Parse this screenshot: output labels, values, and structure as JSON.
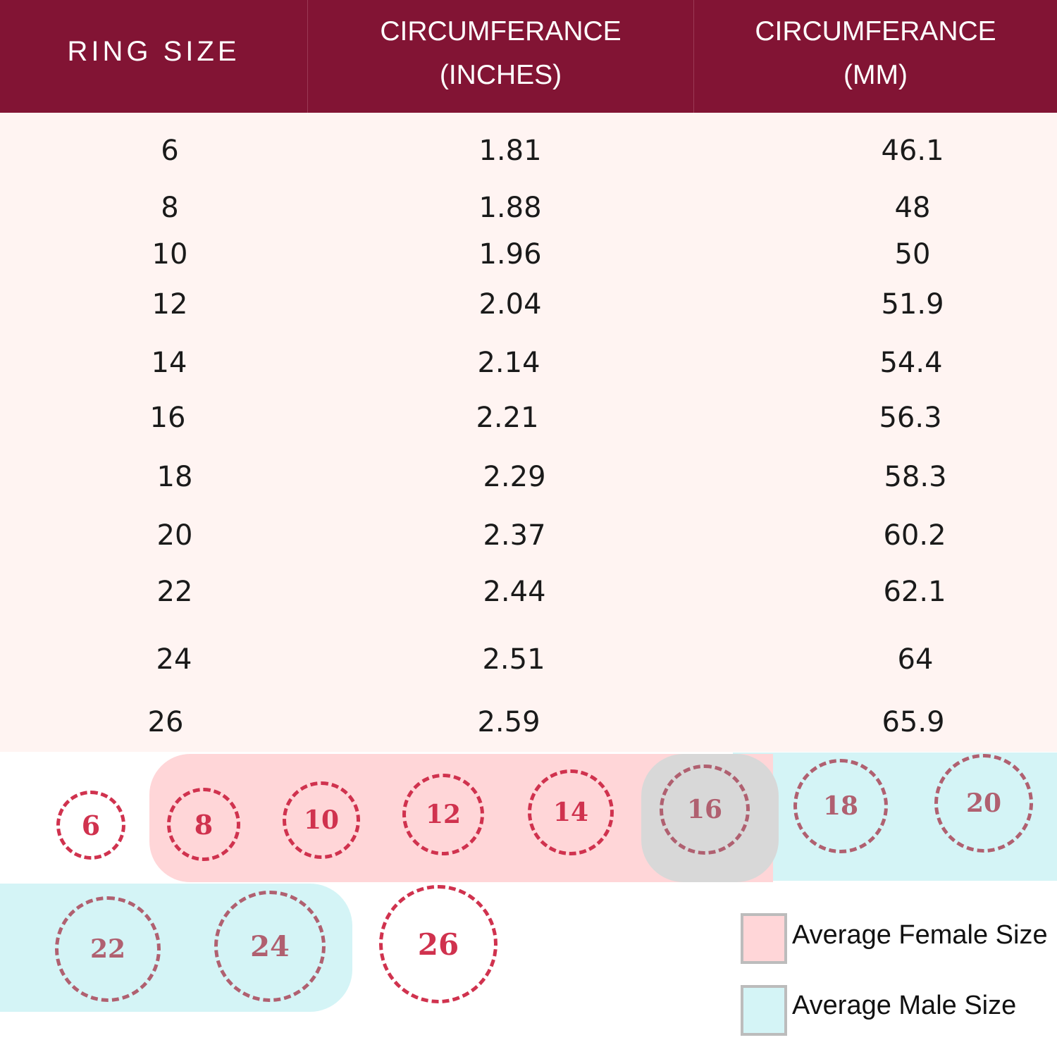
{
  "header": {
    "ring_size": "RING SIZE",
    "inches_line1": "CIRCUMFERANCE",
    "inches_line2": "(INCHES)",
    "mm_line1": "CIRCUMFERANCE",
    "mm_line2": "(MM)"
  },
  "rows": [
    {
      "size": "6",
      "inches": "1.81",
      "mm": "46.1"
    },
    {
      "size": "8",
      "inches": "1.88",
      "mm": "48"
    },
    {
      "size": "10",
      "inches": "1.96",
      "mm": "50"
    },
    {
      "size": "12",
      "inches": "2.04",
      "mm": "51.9"
    },
    {
      "size": "14",
      "inches": "2.14",
      "mm": "54.4"
    },
    {
      "size": "16",
      "inches": "2.21",
      "mm": "56.3"
    },
    {
      "size": "18",
      "inches": "2.29",
      "mm": "58.3"
    },
    {
      "size": "20",
      "inches": "2.37",
      "mm": "60.2"
    },
    {
      "size": "22",
      "inches": "2.44",
      "mm": "62.1"
    },
    {
      "size": "24",
      "inches": "2.51",
      "mm": "64"
    },
    {
      "size": "26",
      "inches": "2.59",
      "mm": "65.9"
    }
  ],
  "rings": [
    "6",
    "8",
    "10",
    "12",
    "14",
    "16",
    "18",
    "20",
    "22",
    "24",
    "26"
  ],
  "legend": {
    "female": "Average Female Size",
    "male": "Average Male Size"
  },
  "colors": {
    "header_bg": "#821434",
    "table_bg": "#fff4f2",
    "female_highlight": "#ffd6d8",
    "male_highlight": "#d4f4f6",
    "overlap_highlight": "#d8d8d8",
    "ring_color": "#d0324e"
  }
}
